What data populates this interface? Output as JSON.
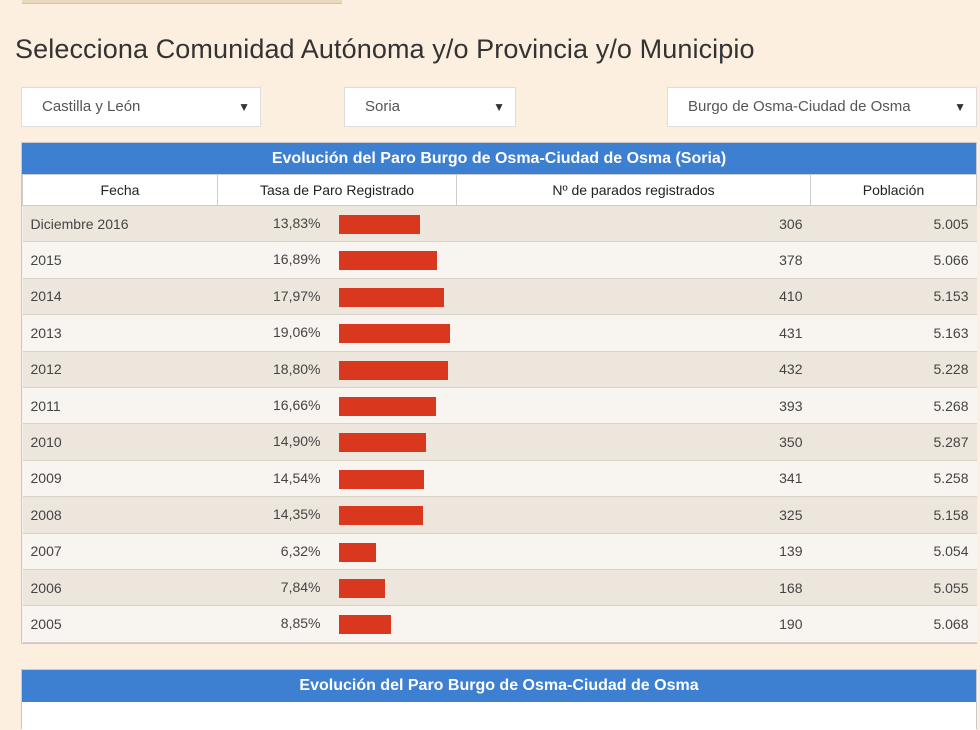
{
  "page_title": "Selecciona Comunidad Autónoma y/o Provincia y/o Municipio",
  "selects": {
    "comunidad": "Castilla y León",
    "provincia": "Soria",
    "municipio": "Burgo de Osma-Ciudad de Osma"
  },
  "table1": {
    "title": "Evolución del Paro Burgo de Osma-Ciudad de Osma (Soria)",
    "headers": [
      "Fecha",
      "Tasa de Paro Registrado",
      "Nº de parados registrados",
      "Población"
    ],
    "rows": [
      {
        "fecha": "Diciembre 2016",
        "tasa": "13,83%",
        "tasa_value": 13.83,
        "parados": "306",
        "poblacion": "5.005"
      },
      {
        "fecha": "2015",
        "tasa": "16,89%",
        "tasa_value": 16.89,
        "parados": "378",
        "poblacion": "5.066"
      },
      {
        "fecha": "2014",
        "tasa": "17,97%",
        "tasa_value": 17.97,
        "parados": "410",
        "poblacion": "5.153"
      },
      {
        "fecha": "2013",
        "tasa": "19,06%",
        "tasa_value": 19.06,
        "parados": "431",
        "poblacion": "5.163"
      },
      {
        "fecha": "2012",
        "tasa": "18,80%",
        "tasa_value": 18.8,
        "parados": "432",
        "poblacion": "5.228"
      },
      {
        "fecha": "2011",
        "tasa": "16,66%",
        "tasa_value": 16.66,
        "parados": "393",
        "poblacion": "5.268"
      },
      {
        "fecha": "2010",
        "tasa": "14,90%",
        "tasa_value": 14.9,
        "parados": "350",
        "poblacion": "5.287"
      },
      {
        "fecha": "2009",
        "tasa": "14,54%",
        "tasa_value": 14.54,
        "parados": "341",
        "poblacion": "5.258"
      },
      {
        "fecha": "2008",
        "tasa": "14,35%",
        "tasa_value": 14.35,
        "parados": "325",
        "poblacion": "5.158"
      },
      {
        "fecha": "2007",
        "tasa": "6,32%",
        "tasa_value": 6.32,
        "parados": "139",
        "poblacion": "5.054"
      },
      {
        "fecha": "2006",
        "tasa": "7,84%",
        "tasa_value": 7.84,
        "parados": "168",
        "poblacion": "5.055"
      },
      {
        "fecha": "2005",
        "tasa": "8,85%",
        "tasa_value": 8.85,
        "parados": "190",
        "poblacion": "5.068"
      }
    ]
  },
  "table2": {
    "title": "Evolución del Paro Burgo de Osma-Ciudad de Osma"
  },
  "colors": {
    "header_blue": "#3d7fd0",
    "bar_red": "#d9381e",
    "page_bg": "#fcefe0"
  }
}
